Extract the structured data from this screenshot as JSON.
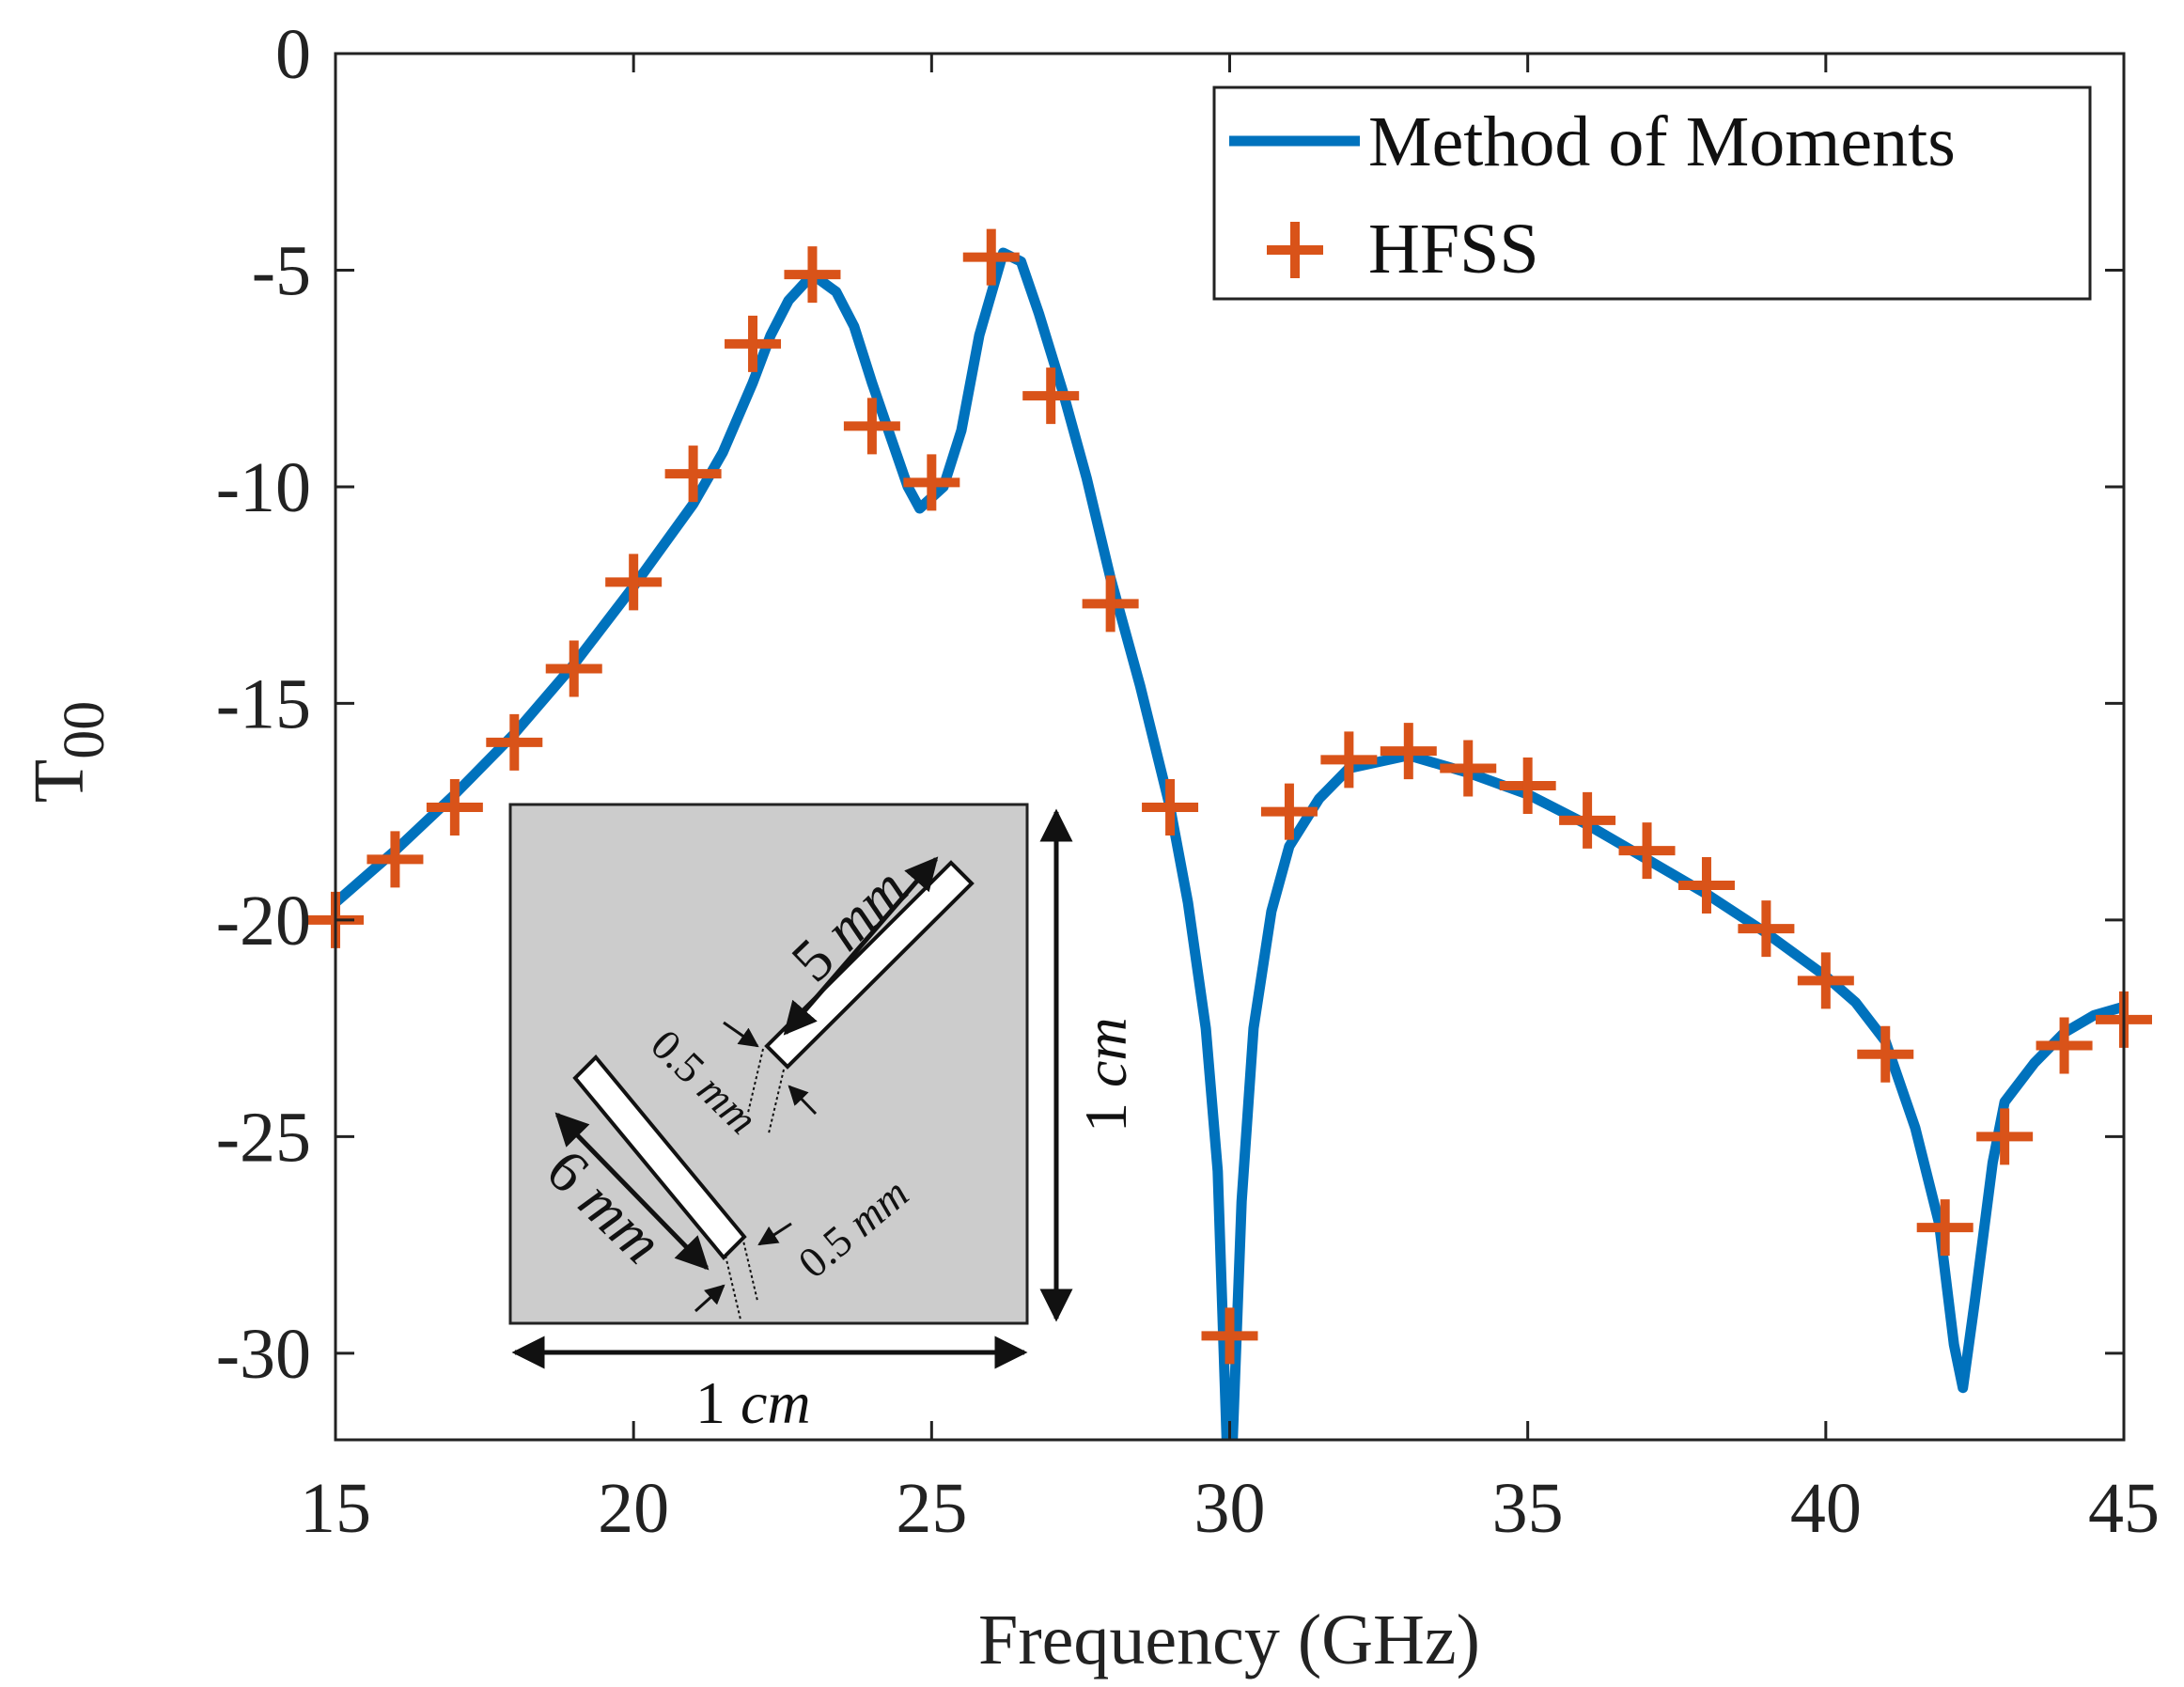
{
  "chart_data": {
    "type": "line",
    "title": "",
    "xlabel": "Frequency (GHz)",
    "ylabel_main": "T",
    "ylabel_sub": "00",
    "xlim": [
      15,
      45
    ],
    "ylim": [
      -32,
      0
    ],
    "xticks": [
      15,
      20,
      25,
      30,
      35,
      40,
      45
    ],
    "yticks": [
      0,
      -5,
      -10,
      -15,
      -20,
      -25,
      -30
    ],
    "xtick_labels": [
      "15",
      "20",
      "25",
      "30",
      "35",
      "40",
      "45"
    ],
    "ytick_labels": [
      "0",
      "-5",
      "-10",
      "-15",
      "-20",
      "-25",
      "-30"
    ],
    "grid": false,
    "legend_position": "top-right",
    "series": [
      {
        "name": "Method of Moments",
        "style": "line",
        "color": "#0072BD",
        "x": [
          15,
          16,
          17,
          18,
          19,
          20,
          21,
          21.5,
          22,
          22.3,
          22.6,
          23,
          23.4,
          23.7,
          24,
          24.3,
          24.6,
          24.8,
          25.2,
          25.5,
          25.8,
          26.2,
          26.5,
          26.8,
          27.2,
          27.6,
          28,
          28.5,
          29,
          29.3,
          29.6,
          29.8,
          29.95,
          30.05,
          30.2,
          30.4,
          30.7,
          31,
          31.5,
          32,
          33,
          34,
          35,
          36,
          37,
          38,
          39,
          40,
          40.5,
          41,
          41.5,
          41.9,
          42.15,
          42.3,
          42.5,
          42.8,
          43,
          43.5,
          44,
          44.5,
          45
        ],
        "y": [
          -19.6,
          -18.4,
          -17.1,
          -15.7,
          -14.1,
          -12.3,
          -10.4,
          -9.2,
          -7.6,
          -6.5,
          -5.7,
          -5.1,
          -5.5,
          -6.3,
          -7.6,
          -8.8,
          -10.0,
          -10.5,
          -10.0,
          -8.7,
          -6.5,
          -4.6,
          -4.8,
          -6.0,
          -7.8,
          -9.8,
          -12.1,
          -14.6,
          -17.4,
          -19.6,
          -22.5,
          -25.8,
          -32,
          -32,
          -26.5,
          -22.5,
          -19.8,
          -18.3,
          -17.2,
          -16.5,
          -16.2,
          -16.6,
          -17.1,
          -17.8,
          -18.6,
          -19.4,
          -20.3,
          -21.3,
          -21.9,
          -22.8,
          -24.8,
          -27.0,
          -29.8,
          -30.8,
          -28.8,
          -25.6,
          -24.2,
          -23.3,
          -22.6,
          -22.2,
          -22.0
        ]
      },
      {
        "name": "HFSS",
        "style": "markers-plus",
        "color": "#D95319",
        "x": [
          15,
          16,
          17,
          18,
          19,
          20,
          21,
          22,
          23,
          24,
          25,
          26,
          27,
          28,
          29,
          30,
          31,
          32,
          33,
          34,
          35,
          36,
          37,
          38,
          39,
          40,
          41,
          42,
          43,
          44,
          45
        ],
        "y": [
          -20.0,
          -18.6,
          -17.4,
          -15.9,
          -14.2,
          -12.2,
          -9.7,
          -6.7,
          -5.1,
          -8.6,
          -9.9,
          -4.7,
          -7.9,
          -12.7,
          -17.4,
          -29.6,
          -17.5,
          -16.3,
          -16.1,
          -16.5,
          -16.9,
          -17.7,
          -18.4,
          -19.2,
          -20.2,
          -21.4,
          -23.1,
          -27.1,
          -25.0,
          -22.9,
          -22.3
        ]
      }
    ],
    "inset": {
      "labels": {
        "strip1_length": "5",
        "strip2_length": "6",
        "gap1": "0.5",
        "gap2": "0.5",
        "side_vertical": "1",
        "side_horizontal": "1",
        "unit_mm": "mm",
        "unit_cm": "cm"
      }
    }
  }
}
